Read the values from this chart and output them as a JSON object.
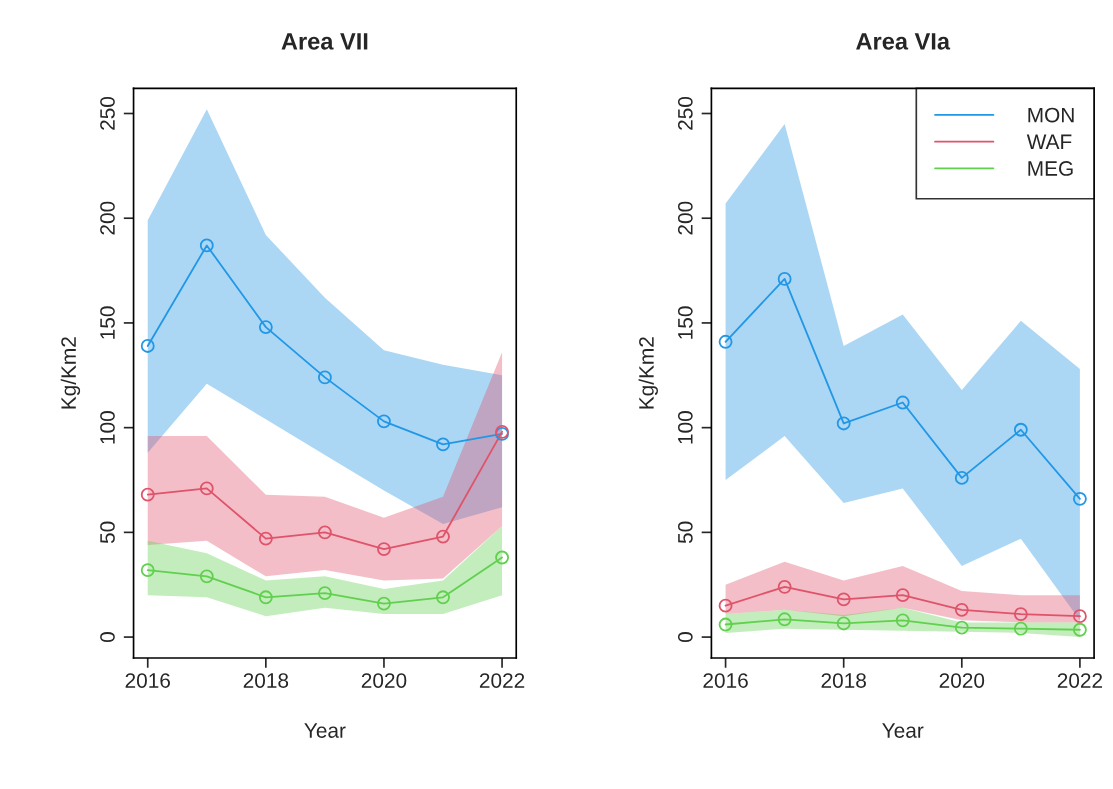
{
  "chart_data": [
    {
      "type": "line",
      "title": "Area VII",
      "xlabel": "Year",
      "ylabel": "Kg/Km2",
      "x": [
        2016,
        2017,
        2018,
        2019,
        2020,
        2021,
        2022
      ],
      "series": [
        {
          "color": "#2297e6",
          "values": [
            139,
            187,
            148,
            124,
            103,
            92,
            97
          ],
          "lower": [
            88,
            121,
            104,
            87,
            70,
            54,
            62
          ],
          "upper": [
            199,
            252,
            192,
            162,
            137,
            130,
            125
          ]
        },
        {
          "color": "#df536b",
          "values": [
            68,
            71,
            47,
            50,
            42,
            48,
            98
          ],
          "lower": [
            44,
            46,
            29,
            32,
            27,
            28,
            53
          ],
          "upper": [
            96,
            96,
            68,
            67,
            57,
            67,
            136
          ]
        },
        {
          "color": "#61d04f",
          "values": [
            32,
            29,
            19,
            21,
            16,
            19,
            38
          ],
          "lower": [
            20,
            19,
            10,
            14,
            11,
            11,
            20
          ],
          "upper": [
            46,
            40,
            27,
            29,
            23,
            27,
            53
          ]
        }
      ],
      "xlim": [
        2015.76,
        2022.24
      ],
      "ylim": [
        -10,
        262
      ],
      "xticks": [
        2016,
        2018,
        2020,
        2022
      ],
      "yticks": [
        0,
        50,
        100,
        150,
        200,
        250
      ],
      "marker": "circle",
      "grid": false,
      "legend": false
    },
    {
      "type": "line",
      "title": "Area VIa",
      "xlabel": "Year",
      "ylabel": "Kg/Km2",
      "x": [
        2016,
        2017,
        2018,
        2019,
        2020,
        2021,
        2022
      ],
      "series": [
        {
          "name": "MON",
          "color": "#2297e6",
          "values": [
            141,
            171,
            102,
            112,
            76,
            99,
            66
          ],
          "lower": [
            75,
            96,
            64,
            71,
            34,
            47,
            8
          ],
          "upper": [
            207,
            245,
            139,
            154,
            118,
            151,
            128
          ]
        },
        {
          "name": "WAF",
          "color": "#df536b",
          "values": [
            15,
            24,
            18,
            20,
            13,
            11,
            10
          ],
          "lower": [
            11,
            13,
            10,
            14,
            8,
            7,
            7
          ],
          "upper": [
            25,
            36,
            27,
            34,
            22,
            20,
            20
          ]
        },
        {
          "name": "MEG",
          "color": "#61d04f",
          "values": [
            6,
            8.5,
            6.5,
            8,
            4.5,
            4,
            3.5
          ],
          "lower": [
            2,
            4,
            3.5,
            3,
            2.5,
            2,
            0
          ],
          "upper": [
            11,
            13,
            10.5,
            14,
            7,
            7,
            7
          ]
        }
      ],
      "xlim": [
        2015.76,
        2022.24
      ],
      "ylim": [
        -10,
        262
      ],
      "xticks": [
        2016,
        2018,
        2020,
        2022
      ],
      "yticks": [
        0,
        50,
        100,
        150,
        200,
        250
      ],
      "marker": "circle",
      "grid": false,
      "legend": "top right"
    }
  ]
}
